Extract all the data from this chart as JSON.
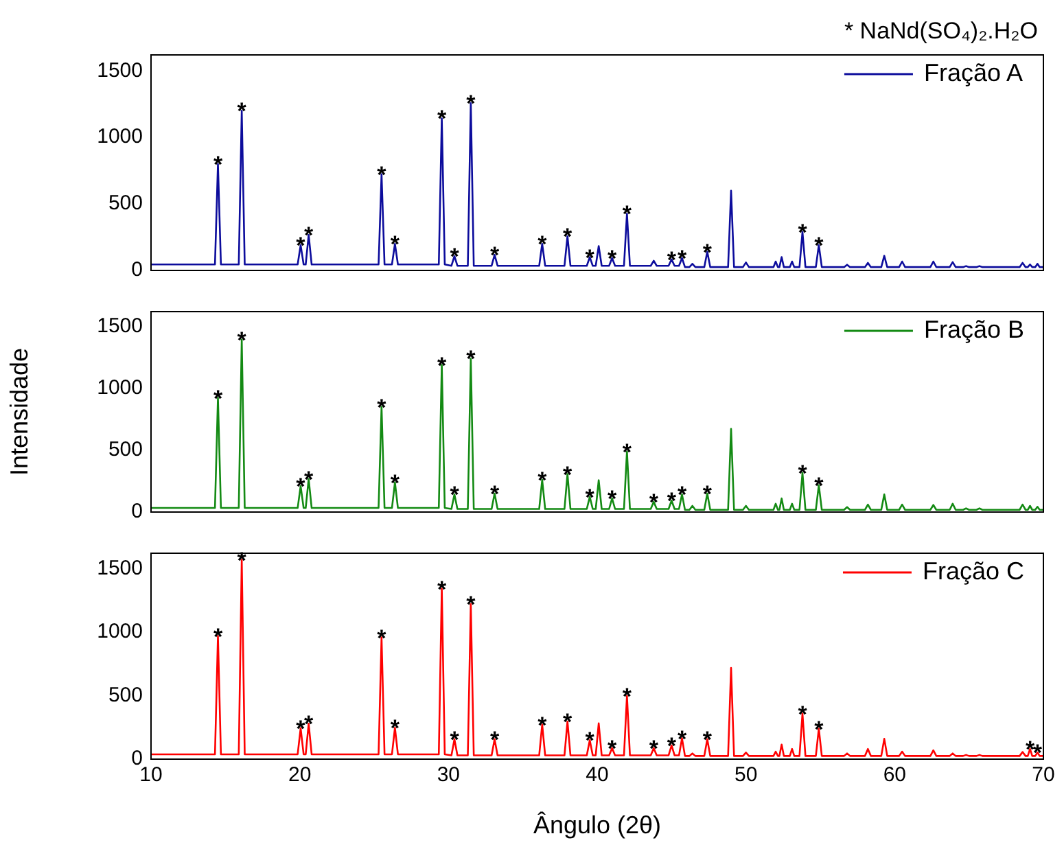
{
  "chart_data": [
    {
      "type": "line",
      "xlim": [
        10,
        70
      ],
      "xticks": [
        10,
        20,
        30,
        40,
        50,
        60,
        70
      ],
      "ylim": [
        0,
        1620
      ],
      "yticks": [
        0,
        500,
        1000,
        1500
      ],
      "tick_labels": "y",
      "legend": "top right",
      "grid": false,
      "x": [
        10,
        14.3,
        14.5,
        14.7,
        15.9,
        16.1,
        16.3,
        19.86,
        20.06,
        20.26,
        20.4,
        20.6,
        20.8,
        25.3,
        25.5,
        25.7,
        26.2,
        26.4,
        26.6,
        29.35,
        29.55,
        29.75,
        30.2,
        30.4,
        30.6,
        31.3,
        31.5,
        31.7,
        32.9,
        33.1,
        33.3,
        36.1,
        36.3,
        36.5,
        37.8,
        38.0,
        38.2,
        39.3,
        39.5,
        39.7,
        39.9,
        40.1,
        40.3,
        40.8,
        41.0,
        41.2,
        41.8,
        42.0,
        42.2,
        43.6,
        43.8,
        44.0,
        44.8,
        45.0,
        45.2,
        45.5,
        45.7,
        45.9,
        46.2,
        46.4,
        46.6,
        47.2,
        47.4,
        47.6,
        48.8,
        49.0,
        49.2,
        49.8,
        50.0,
        50.2,
        51.85,
        52.0,
        52.15,
        52.25,
        52.4,
        52.55,
        52.95,
        53.1,
        53.25,
        53.6,
        53.8,
        54.0,
        54.7,
        54.9,
        55.1,
        56.6,
        56.8,
        57.0,
        58.0,
        58.2,
        58.4,
        59.1,
        59.3,
        59.5,
        60.3,
        60.5,
        60.7,
        62.4,
        62.6,
        62.8,
        63.7,
        63.9,
        64.1,
        64.6,
        64.8,
        65.0,
        65.5,
        65.7,
        65.9,
        68.4,
        68.6,
        68.8,
        68.95,
        69.1,
        69.25,
        69.45,
        69.6,
        69.75,
        70
      ],
      "series": [
        {
          "name": "Fração A",
          "color": "#0c0c9c",
          "values": [
            45,
            45,
            800,
            45,
            45,
            1200,
            45,
            45,
            190,
            45,
            45,
            267,
            45,
            45,
            723,
            45,
            45,
            200,
            45,
            45,
            1143,
            45,
            35,
            107,
            35,
            35,
            1257,
            35,
            35,
            117,
            35,
            35,
            200,
            35,
            35,
            257,
            35,
            35,
            100,
            35,
            35,
            183,
            35,
            35,
            93,
            35,
            35,
            427,
            35,
            35,
            73,
            35,
            35,
            83,
            35,
            35,
            93,
            25,
            25,
            50,
            25,
            25,
            140,
            25,
            25,
            600,
            25,
            25,
            60,
            25,
            25,
            67,
            25,
            25,
            100,
            25,
            25,
            67,
            25,
            25,
            290,
            25,
            25,
            190,
            25,
            25,
            43,
            25,
            25,
            57,
            25,
            25,
            110,
            25,
            25,
            67,
            25,
            25,
            67,
            25,
            25,
            63,
            25,
            25,
            33,
            25,
            25,
            33,
            25,
            25,
            57,
            25,
            25,
            45,
            25,
            25,
            50,
            25,
            25
          ]
        }
      ],
      "annotations": [
        "* NaNd(SO₄)₂.H₂O",
        {
          "text": "*",
          "x": 14.5,
          "y": 800
        },
        {
          "text": "*",
          "x": 16.1,
          "y": 1200
        },
        {
          "text": "*",
          "x": 20.06,
          "y": 190
        },
        {
          "text": "*",
          "x": 20.6,
          "y": 267
        },
        {
          "text": "*",
          "x": 25.5,
          "y": 723
        },
        {
          "text": "*",
          "x": 26.4,
          "y": 200
        },
        {
          "text": "*",
          "x": 29.55,
          "y": 1143
        },
        {
          "text": "*",
          "x": 30.4,
          "y": 107
        },
        {
          "text": "*",
          "x": 31.5,
          "y": 1257
        },
        {
          "text": "*",
          "x": 33.1,
          "y": 117
        },
        {
          "text": "*",
          "x": 36.3,
          "y": 200
        },
        {
          "text": "*",
          "x": 38.0,
          "y": 257
        },
        {
          "text": "*",
          "x": 39.5,
          "y": 100
        },
        {
          "text": "*",
          "x": 41.0,
          "y": 93
        },
        {
          "text": "*",
          "x": 42.0,
          "y": 427
        },
        {
          "text": "*",
          "x": 45.0,
          "y": 83
        },
        {
          "text": "*",
          "x": 45.7,
          "y": 93
        },
        {
          "text": "*",
          "x": 47.4,
          "y": 140
        },
        {
          "text": "*",
          "x": 53.8,
          "y": 290
        },
        {
          "text": "*",
          "x": 54.9,
          "y": 190
        }
      ]
    },
    {
      "type": "line",
      "ylabel": "Intensidade",
      "xlim": [
        10,
        70
      ],
      "xticks": [
        10,
        20,
        30,
        40,
        50,
        60,
        70
      ],
      "ylim": [
        0,
        1620
      ],
      "yticks": [
        0,
        500,
        1000,
        1500
      ],
      "tick_labels": "y",
      "legend": "top right",
      "grid": false,
      "x": [
        10,
        14.3,
        14.5,
        14.7,
        15.9,
        16.1,
        16.3,
        19.86,
        20.06,
        20.26,
        20.4,
        20.6,
        20.8,
        25.3,
        25.5,
        25.7,
        26.2,
        26.4,
        26.6,
        29.35,
        29.55,
        29.75,
        30.2,
        30.4,
        30.6,
        31.3,
        31.5,
        31.7,
        32.9,
        33.1,
        33.3,
        36.1,
        36.3,
        36.5,
        37.8,
        38.0,
        38.2,
        39.3,
        39.5,
        39.7,
        39.9,
        40.1,
        40.3,
        40.8,
        41.0,
        41.2,
        41.8,
        42.0,
        42.2,
        43.6,
        43.8,
        44.0,
        44.8,
        45.0,
        45.2,
        45.5,
        45.7,
        45.9,
        46.2,
        46.4,
        46.6,
        47.2,
        47.4,
        47.6,
        48.8,
        49.0,
        49.2,
        49.8,
        50.0,
        50.2,
        51.85,
        52.0,
        52.15,
        52.25,
        52.4,
        52.55,
        52.95,
        53.1,
        53.25,
        53.6,
        53.8,
        54.0,
        54.7,
        54.9,
        55.1,
        56.6,
        56.8,
        57.0,
        58.0,
        58.2,
        58.4,
        59.1,
        59.3,
        59.5,
        60.3,
        60.5,
        60.7,
        62.4,
        62.6,
        62.8,
        63.7,
        63.9,
        64.1,
        64.6,
        64.8,
        65.0,
        65.5,
        65.7,
        65.9,
        68.4,
        68.6,
        68.8,
        68.95,
        69.1,
        69.25,
        69.45,
        69.6,
        69.75,
        70
      ],
      "series": [
        {
          "name": "Fração B",
          "color": "#138a13",
          "values": [
            33,
            33,
            923,
            33,
            33,
            1393,
            33,
            33,
            210,
            33,
            33,
            267,
            33,
            33,
            850,
            33,
            33,
            240,
            33,
            33,
            1190,
            33,
            25,
            143,
            25,
            25,
            1240,
            25,
            25,
            150,
            25,
            25,
            260,
            25,
            25,
            307,
            25,
            25,
            123,
            25,
            25,
            257,
            25,
            25,
            110,
            25,
            25,
            490,
            25,
            25,
            83,
            25,
            25,
            93,
            25,
            25,
            143,
            18,
            18,
            50,
            18,
            18,
            150,
            18,
            18,
            673,
            18,
            18,
            50,
            18,
            18,
            67,
            18,
            18,
            110,
            18,
            18,
            67,
            18,
            18,
            317,
            18,
            18,
            217,
            18,
            18,
            40,
            18,
            18,
            60,
            18,
            18,
            143,
            18,
            18,
            60,
            18,
            18,
            57,
            18,
            18,
            67,
            18,
            18,
            30,
            18,
            18,
            30,
            18,
            18,
            60,
            18,
            18,
            50,
            18,
            18,
            43,
            18,
            18
          ]
        }
      ],
      "annotations": [
        {
          "text": "*",
          "x": 14.5,
          "y": 923
        },
        {
          "text": "*",
          "x": 16.1,
          "y": 1393
        },
        {
          "text": "*",
          "x": 20.06,
          "y": 210
        },
        {
          "text": "*",
          "x": 20.6,
          "y": 267
        },
        {
          "text": "*",
          "x": 25.5,
          "y": 850
        },
        {
          "text": "*",
          "x": 26.4,
          "y": 240
        },
        {
          "text": "*",
          "x": 29.55,
          "y": 1190
        },
        {
          "text": "*",
          "x": 30.4,
          "y": 143
        },
        {
          "text": "*",
          "x": 31.5,
          "y": 1240
        },
        {
          "text": "*",
          "x": 33.1,
          "y": 150
        },
        {
          "text": "*",
          "x": 36.3,
          "y": 260
        },
        {
          "text": "*",
          "x": 38.0,
          "y": 307
        },
        {
          "text": "*",
          "x": 39.5,
          "y": 123
        },
        {
          "text": "*",
          "x": 41.0,
          "y": 110
        },
        {
          "text": "*",
          "x": 42.0,
          "y": 490
        },
        {
          "text": "*",
          "x": 43.8,
          "y": 83
        },
        {
          "text": "*",
          "x": 45.0,
          "y": 93
        },
        {
          "text": "*",
          "x": 45.7,
          "y": 143
        },
        {
          "text": "*",
          "x": 47.4,
          "y": 150
        },
        {
          "text": "*",
          "x": 53.8,
          "y": 317
        },
        {
          "text": "*",
          "x": 54.9,
          "y": 217
        }
      ]
    },
    {
      "type": "line",
      "xlabel": "Ângulo (2θ)",
      "xlim": [
        10,
        70
      ],
      "xticks": [
        10,
        20,
        30,
        40,
        50,
        60,
        70
      ],
      "ylim": [
        0,
        1620
      ],
      "yticks": [
        0,
        500,
        1000,
        1500
      ],
      "legend": "top right",
      "grid": false,
      "x": [
        10,
        14.3,
        14.5,
        14.7,
        15.9,
        16.1,
        16.3,
        19.86,
        20.06,
        20.26,
        20.4,
        20.6,
        20.8,
        25.3,
        25.5,
        25.7,
        26.2,
        26.4,
        26.6,
        29.35,
        29.55,
        29.75,
        30.2,
        30.4,
        30.6,
        31.3,
        31.5,
        31.7,
        32.9,
        33.1,
        33.3,
        36.1,
        36.3,
        36.5,
        37.8,
        38.0,
        38.2,
        39.3,
        39.5,
        39.7,
        39.9,
        40.1,
        40.3,
        40.8,
        41.0,
        41.2,
        41.8,
        42.0,
        42.2,
        43.6,
        43.8,
        44.0,
        44.8,
        45.0,
        45.2,
        45.5,
        45.7,
        45.9,
        46.2,
        46.4,
        46.6,
        47.2,
        47.4,
        47.6,
        48.8,
        49.0,
        49.2,
        49.8,
        50.0,
        50.2,
        51.85,
        52.0,
        52.15,
        52.25,
        52.4,
        52.55,
        52.95,
        53.1,
        53.25,
        53.6,
        53.8,
        54.0,
        54.7,
        54.9,
        55.1,
        56.6,
        56.8,
        57.0,
        58.0,
        58.2,
        58.4,
        59.1,
        59.3,
        59.5,
        60.3,
        60.5,
        60.7,
        62.4,
        62.6,
        62.8,
        63.7,
        63.9,
        64.1,
        64.6,
        64.8,
        65.0,
        65.5,
        65.7,
        65.9,
        68.4,
        68.6,
        68.8,
        68.95,
        69.1,
        69.25,
        69.45,
        69.6,
        69.75,
        70
      ],
      "series": [
        {
          "name": "Fração C",
          "color": "#ff0000",
          "values": [
            38,
            38,
            969,
            38,
            38,
            1568,
            38,
            38,
            244,
            38,
            38,
            279,
            38,
            38,
            958,
            38,
            38,
            247,
            38,
            38,
            1341,
            38,
            30,
            157,
            30,
            30,
            1220,
            30,
            30,
            157,
            30,
            30,
            272,
            30,
            30,
            296,
            30,
            30,
            150,
            30,
            30,
            282,
            30,
            30,
            87,
            30,
            30,
            498,
            30,
            30,
            87,
            30,
            30,
            108,
            30,
            30,
            164,
            25,
            25,
            45,
            25,
            25,
            157,
            25,
            25,
            718,
            25,
            25,
            52,
            25,
            25,
            59,
            25,
            25,
            115,
            25,
            25,
            80,
            25,
            25,
            359,
            25,
            25,
            240,
            25,
            25,
            45,
            25,
            25,
            80,
            25,
            25,
            160,
            25,
            25,
            59,
            25,
            25,
            70,
            25,
            25,
            45,
            25,
            25,
            33,
            25,
            25,
            33,
            25,
            25,
            56,
            25,
            25,
            80,
            25,
            25,
            52,
            25,
            25
          ]
        }
      ],
      "annotations": [
        {
          "text": "*",
          "x": 14.5,
          "y": 969
        },
        {
          "text": "*",
          "x": 16.1,
          "y": 1568
        },
        {
          "text": "*",
          "x": 20.06,
          "y": 244
        },
        {
          "text": "*",
          "x": 20.6,
          "y": 279
        },
        {
          "text": "*",
          "x": 25.5,
          "y": 958
        },
        {
          "text": "*",
          "x": 26.4,
          "y": 247
        },
        {
          "text": "*",
          "x": 29.55,
          "y": 1341
        },
        {
          "text": "*",
          "x": 30.4,
          "y": 157
        },
        {
          "text": "*",
          "x": 31.5,
          "y": 1220
        },
        {
          "text": "*",
          "x": 33.1,
          "y": 157
        },
        {
          "text": "*",
          "x": 36.3,
          "y": 272
        },
        {
          "text": "*",
          "x": 38.0,
          "y": 296
        },
        {
          "text": "*",
          "x": 39.5,
          "y": 150
        },
        {
          "text": "*",
          "x": 41.0,
          "y": 87
        },
        {
          "text": "*",
          "x": 42.0,
          "y": 498
        },
        {
          "text": "*",
          "x": 43.8,
          "y": 87
        },
        {
          "text": "*",
          "x": 45.0,
          "y": 108
        },
        {
          "text": "*",
          "x": 45.7,
          "y": 164
        },
        {
          "text": "*",
          "x": 47.4,
          "y": 157
        },
        {
          "text": "*",
          "x": 53.8,
          "y": 359
        },
        {
          "text": "*",
          "x": 54.9,
          "y": 240
        },
        {
          "text": "*",
          "x": 69.1,
          "y": 80
        },
        {
          "text": "*",
          "x": 69.6,
          "y": 52
        }
      ]
    }
  ]
}
